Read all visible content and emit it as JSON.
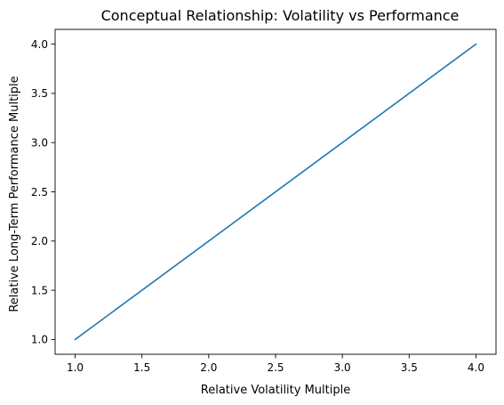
{
  "chart_data": {
    "type": "line",
    "title": "Conceptual Relationship: Volatility vs Performance",
    "xlabel": "Relative Volatility Multiple",
    "ylabel": "Relative Long-Term Performance Multiple",
    "xlim": [
      0.85,
      4.15
    ],
    "ylim": [
      0.85,
      4.15
    ],
    "xticks": [
      1.0,
      1.5,
      2.0,
      2.5,
      3.0,
      3.5,
      4.0
    ],
    "yticks": [
      1.0,
      1.5,
      2.0,
      2.5,
      3.0,
      3.5,
      4.0
    ],
    "xtick_labels": [
      "1.0",
      "1.5",
      "2.0",
      "2.5",
      "3.0",
      "3.5",
      "4.0"
    ],
    "ytick_labels": [
      "1.0",
      "1.5",
      "2.0",
      "2.5",
      "3.0",
      "3.5",
      "4.0"
    ],
    "grid": false,
    "series": [
      {
        "x": [
          1.0,
          4.0
        ],
        "y": [
          1.0,
          4.0
        ],
        "color": "#1f77b4"
      }
    ]
  }
}
